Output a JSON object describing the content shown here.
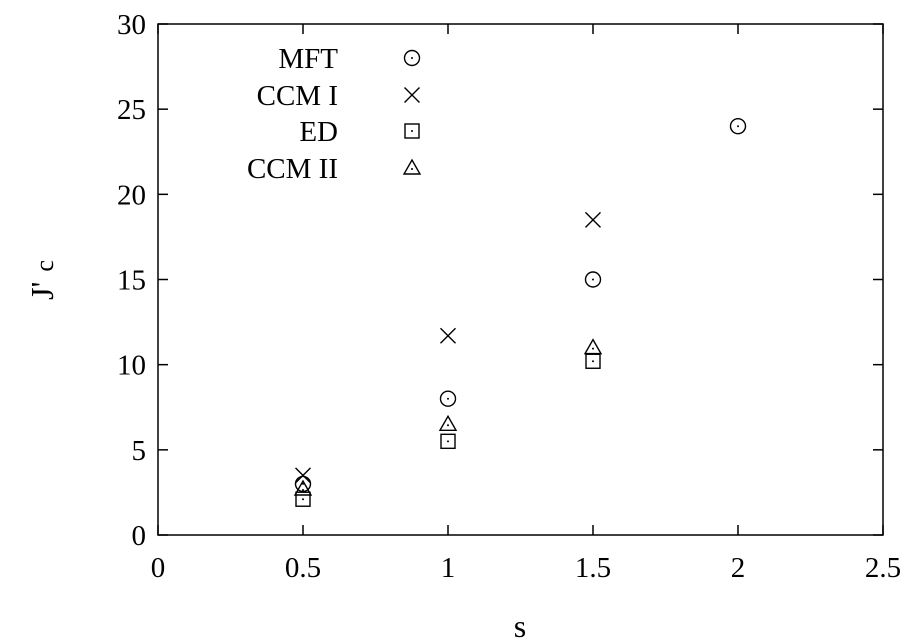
{
  "chart_data": {
    "type": "scatter",
    "title": "",
    "xlabel": "s",
    "ylabel": "J'",
    "ylabel_subscript": "c",
    "xlim": [
      0,
      2.5
    ],
    "ylim": [
      0,
      30
    ],
    "xticks": [
      "0",
      "0.5",
      "1",
      "1.5",
      "2",
      "2.5"
    ],
    "yticks": [
      "0",
      "5",
      "10",
      "15",
      "20",
      "25",
      "30"
    ],
    "grid": false,
    "legend_position": "top-left",
    "series": [
      {
        "name": "MFT",
        "marker": "circle",
        "points": [
          [
            0.5,
            3.0
          ],
          [
            1.0,
            8.0
          ],
          [
            1.5,
            15.0
          ],
          [
            2.0,
            24.0
          ]
        ]
      },
      {
        "name": "CCM I",
        "marker": "cross",
        "points": [
          [
            0.5,
            3.5
          ],
          [
            1.0,
            11.7
          ],
          [
            1.5,
            18.5
          ]
        ]
      },
      {
        "name": "ED",
        "marker": "square",
        "points": [
          [
            0.5,
            2.1
          ],
          [
            1.0,
            5.5
          ],
          [
            1.5,
            10.2
          ]
        ]
      },
      {
        "name": "CCM II",
        "marker": "triangle",
        "points": [
          [
            0.5,
            2.7
          ],
          [
            1.0,
            6.5
          ],
          [
            1.5,
            11.0
          ]
        ]
      }
    ]
  }
}
